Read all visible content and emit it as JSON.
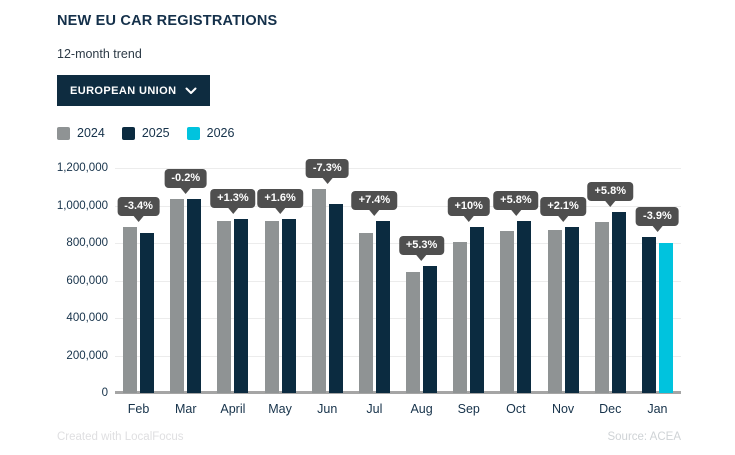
{
  "header": {
    "title": "NEW EU CAR REGISTRATIONS",
    "subtitle": "12-month trend"
  },
  "controls": {
    "region_dropdown": {
      "value": "EUROPEAN UNION",
      "icon": "chevron-down-icon"
    }
  },
  "legend": {
    "items": [
      {
        "label": "2024",
        "color": "#8f9394"
      },
      {
        "label": "2025",
        "color": "#0b2b40"
      },
      {
        "label": "2026",
        "color": "#00c3de"
      }
    ]
  },
  "chart_data": {
    "type": "bar",
    "title": "NEW EU CAR REGISTRATIONS",
    "subtitle": "12-month trend",
    "categories": [
      "Feb",
      "Mar",
      "April",
      "May",
      "Jun",
      "Jul",
      "Aug",
      "Sep",
      "Oct",
      "Nov",
      "Dec",
      "Jan"
    ],
    "series": [
      {
        "name": "2024",
        "color": "#8f9394",
        "values": [
          885000,
          1035000,
          915000,
          915000,
          1090000,
          852000,
          645000,
          805000,
          865000,
          870000,
          910000,
          null
        ]
      },
      {
        "name": "2025",
        "color": "#0b2b40",
        "values": [
          855000,
          1033000,
          927000,
          930000,
          1010000,
          915000,
          680000,
          885000,
          915000,
          888000,
          963000,
          830000
        ]
      },
      {
        "name": "2026",
        "color": "#00c3de",
        "values": [
          null,
          null,
          null,
          null,
          null,
          null,
          null,
          null,
          null,
          null,
          null,
          798000
        ]
      }
    ],
    "badges": [
      "-3.4%",
      "-0.2%",
      "+1.3%",
      "+1.6%",
      "-7.3%",
      "+7.4%",
      "+5.3%",
      "+10%",
      "+5.8%",
      "+2.1%",
      "+5.8%",
      "-3.9%"
    ],
    "badge_colors": {
      "bg": "#4f4f4f",
      "text": "#ffffff"
    },
    "xlabel": "",
    "ylabel": "",
    "ylim": [
      0,
      1200000
    ],
    "grid": true,
    "legend_position": "top-left",
    "y_axis_ticks": [
      {
        "value": 1200000,
        "label": "1,200,000"
      },
      {
        "value": 1000000,
        "label": "1,000,000"
      },
      {
        "value": 800000,
        "label": "800,000"
      },
      {
        "value": 600000,
        "label": "600,000"
      },
      {
        "value": 400000,
        "label": "400,000"
      },
      {
        "value": 200000,
        "label": "200,000"
      },
      {
        "value": 0,
        "label": "0"
      }
    ]
  },
  "footer": {
    "left": "Created with LocalFocus",
    "right": "Source: ACEA"
  }
}
